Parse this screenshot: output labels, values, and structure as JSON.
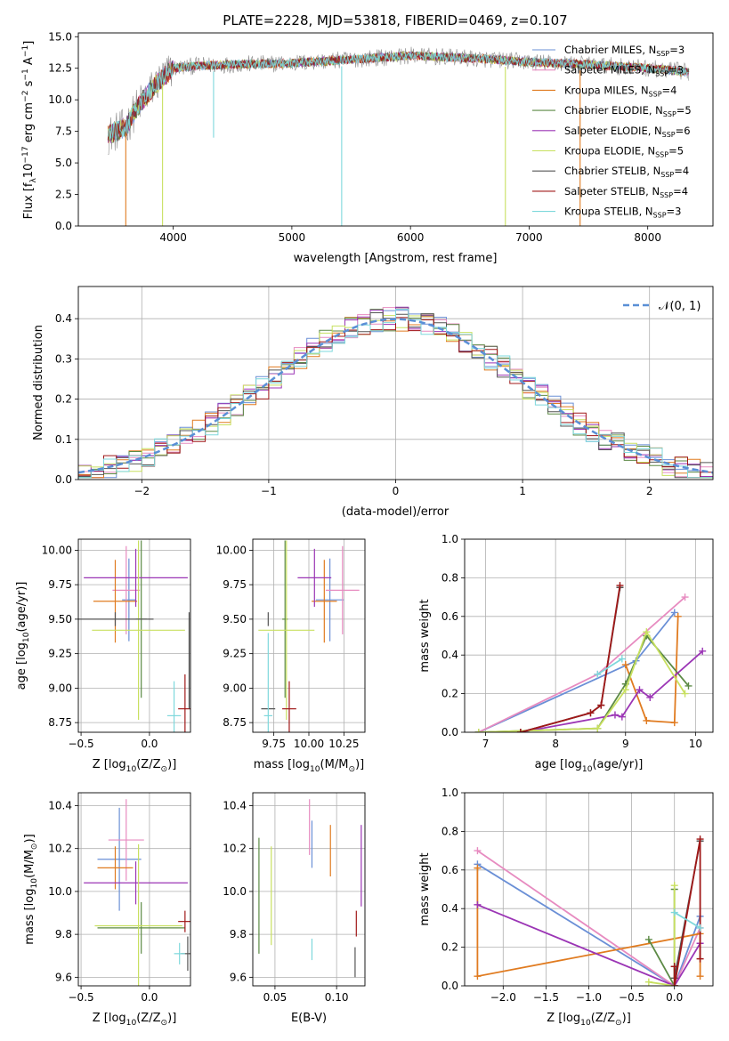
{
  "figure": {
    "title": "PLATE=2228, MJD=53818, FIBERID=0469, z=0.107"
  },
  "colors": {
    "chabrier_miles": "#6a8fd6",
    "salpeter_miles": "#e78bc0",
    "kroupa_miles": "#e07b20",
    "chabrier_elodie": "#5c8a45",
    "salpeter_elodie": "#9b35b5",
    "kroupa_elodie": "#c8e060",
    "chabrier_stelib": "#555555",
    "salpeter_stelib": "#a01818",
    "kroupa_stelib": "#7ed8dc",
    "data_gray": "#8c8c8c",
    "normal_curve": "#5a8fd6"
  },
  "chart_data": [
    {
      "id": "spectrum",
      "type": "line",
      "xlabel": "wavelength [Angstrom, rest frame]",
      "ylabel": "Flux [f",
      "ylabel_parts": [
        "Flux [f",
        "λ",
        "10",
        "−17",
        " erg cm",
        "−2",
        " s",
        "−1",
        " A",
        "−1",
        "]"
      ],
      "xlim": [
        3200,
        8550
      ],
      "ylim": [
        0,
        15.3
      ],
      "xticks": [
        4000,
        5000,
        6000,
        7000,
        8000
      ],
      "xtick_labels": [
        "4000",
        "5000",
        "6000",
        "7000",
        "8000"
      ],
      "yticks": [
        0,
        2.5,
        5,
        7.5,
        10,
        12.5,
        15
      ],
      "ytick_labels": [
        "0.0",
        "2.5",
        "5.0",
        "7.5",
        "10.0",
        "12.5",
        "15.0"
      ],
      "grid": false,
      "legend_position": "right",
      "legend": [
        {
          "label": "Chabrier MILES, N",
          "sub": "SSP",
          "n": "=3",
          "color_key": "chabrier_miles"
        },
        {
          "label": "Salpeter MILES, N",
          "sub": "SSP",
          "n": "=3",
          "color_key": "salpeter_miles"
        },
        {
          "label": "Kroupa MILES, N",
          "sub": "SSP",
          "n": "=4",
          "color_key": "kroupa_miles"
        },
        {
          "label": "Chabrier ELODIE, N",
          "sub": "SSP",
          "n": "=5",
          "color_key": "chabrier_elodie"
        },
        {
          "label": "Salpeter ELODIE, N",
          "sub": "SSP",
          "n": "=6",
          "color_key": "salpeter_elodie"
        },
        {
          "label": "Kroupa ELODIE, N",
          "sub": "SSP",
          "n": "=5",
          "color_key": "kroupa_elodie"
        },
        {
          "label": "Chabrier STELIB, N",
          "sub": "SSP",
          "n": "=4",
          "color_key": "chabrier_stelib"
        },
        {
          "label": "Salpeter STELIB, N",
          "sub": "SSP",
          "n": "=4",
          "color_key": "salpeter_stelib"
        },
        {
          "label": "Kroupa STELIB, N",
          "sub": "SSP",
          "n": "=3",
          "color_key": "kroupa_stelib"
        }
      ],
      "continuum": {
        "x": [
          3450,
          3600,
          3700,
          3850,
          4000,
          4200,
          4500,
          5000,
          5500,
          6000,
          6500,
          7000,
          7500,
          8000,
          8350
        ],
        "y": [
          7.2,
          7.8,
          9.5,
          11.2,
          12.5,
          12.7,
          12.8,
          12.9,
          13.2,
          13.5,
          13.3,
          13.0,
          12.8,
          12.5,
          12.2
        ]
      },
      "dips": [
        {
          "x": 3600,
          "y": 0.0,
          "series": "kroupa_miles"
        },
        {
          "x": 3910,
          "y": 0.0,
          "series": "kroupa_elodie"
        },
        {
          "x": 4340,
          "y": 7.0,
          "series": "kroupa_stelib"
        },
        {
          "x": 5420,
          "y": 0.0,
          "series": "kroupa_stelib"
        },
        {
          "x": 6800,
          "y": 0.0,
          "series": "kroupa_elodie"
        },
        {
          "x": 7430,
          "y": 0.0,
          "series": "kroupa_miles"
        }
      ]
    },
    {
      "id": "residuals",
      "type": "histogram",
      "xlabel": "(data-model)/error",
      "ylabel": "Normed distribution",
      "xlim": [
        -2.5,
        2.5
      ],
      "ylim": [
        0,
        0.48
      ],
      "xticks": [
        -2,
        -1,
        0,
        1,
        2
      ],
      "xtick_labels": [
        "−2",
        "−1",
        "0",
        "1",
        "2"
      ],
      "yticks": [
        0,
        0.1,
        0.2,
        0.3,
        0.4
      ],
      "ytick_labels": [
        "0.0",
        "0.1",
        "0.2",
        "0.3",
        "0.4"
      ],
      "grid": true,
      "legend_position": "top-right",
      "normal_label": "𝒩(0, 1)",
      "bin_width": 0.1
    },
    {
      "id": "age_vs_Z",
      "type": "scatter",
      "xlabel": "Z [log",
      "xlabel_parts": [
        "Z [log",
        "10",
        "(Z/Z",
        "⊙",
        ")]"
      ],
      "ylabel_parts": [
        "age  [log",
        "10",
        "(age/yr)]"
      ],
      "xlim": [
        -0.52,
        0.3
      ],
      "ylim": [
        8.68,
        10.08
      ],
      "xticks": [
        -0.5,
        0.0
      ],
      "xtick_labels": [
        "−0.5",
        "0.0"
      ],
      "yticks": [
        8.75,
        9.0,
        9.25,
        9.5,
        9.75,
        10.0
      ],
      "ytick_labels": [
        "8.75",
        "9.00",
        "9.25",
        "9.50",
        "9.75",
        "10.00"
      ],
      "grid": true,
      "points": [
        {
          "series": "chabrier_miles",
          "x": -0.15,
          "y": 9.64,
          "xerr": 0.05,
          "yerr": 0.3
        },
        {
          "series": "salpeter_miles",
          "x": -0.17,
          "y": 9.71,
          "xerr": 0.1,
          "yerr": 0.32
        },
        {
          "series": "kroupa_miles",
          "x": -0.25,
          "y": 9.63,
          "xerr": 0.16,
          "yerr": 0.3
        },
        {
          "series": "chabrier_elodie",
          "x": -0.06,
          "y": 9.5,
          "xerr": 0.04,
          "yerr": 0.57
        },
        {
          "series": "salpeter_elodie",
          "x": -0.1,
          "y": 9.8,
          "xerr": 0.38,
          "yerr": 0.21
        },
        {
          "series": "kroupa_elodie",
          "x": -0.08,
          "y": 9.42,
          "xerr": 0.34,
          "yerr": 0.65
        },
        {
          "series": "chabrier_stelib",
          "x": -0.25,
          "y": 9.5,
          "xerr": 0.28,
          "yerr": 0.05
        },
        {
          "series": "salpeter_stelib",
          "x": 0.26,
          "y": 8.85,
          "xerr": 0.05,
          "yerr": 0.25
        },
        {
          "series": "kroupa_stelib",
          "x": 0.18,
          "y": 8.8,
          "xerr": 0.05,
          "yerr": 0.25
        },
        {
          "series": "chabrier_stelib",
          "x": 0.29,
          "y": 9.2,
          "xerr": 0.0,
          "yerr": 0.35
        }
      ]
    },
    {
      "id": "age_vs_mass",
      "type": "scatter",
      "xlabel_parts": [
        "mass [log",
        "10",
        "(M/M",
        "⊙",
        ")]"
      ],
      "xlim": [
        9.6,
        10.4
      ],
      "ylim": [
        8.68,
        10.08
      ],
      "xticks": [
        9.75,
        10.0,
        10.25
      ],
      "xtick_labels": [
        "9.75",
        "10.00",
        "10.25"
      ],
      "yticks": [
        8.75,
        9.0,
        9.25,
        9.5,
        9.75,
        10.0
      ],
      "ytick_labels": [
        "8.75",
        "9.00",
        "9.25",
        "9.50",
        "9.75",
        "10.00"
      ],
      "grid": true,
      "points": [
        {
          "series": "chabrier_miles",
          "x": 10.15,
          "y": 9.64,
          "xerr": 0.1,
          "yerr": 0.3
        },
        {
          "series": "salpeter_miles",
          "x": 10.24,
          "y": 9.71,
          "xerr": 0.12,
          "yerr": 0.32
        },
        {
          "series": "kroupa_miles",
          "x": 10.11,
          "y": 9.63,
          "xerr": 0.09,
          "yerr": 0.3
        },
        {
          "series": "chabrier_elodie",
          "x": 9.83,
          "y": 9.5,
          "xerr": 0.02,
          "yerr": 0.57
        },
        {
          "series": "salpeter_elodie",
          "x": 10.04,
          "y": 9.8,
          "xerr": 0.12,
          "yerr": 0.21
        },
        {
          "series": "kroupa_elodie",
          "x": 9.84,
          "y": 9.42,
          "xerr": 0.2,
          "yerr": 0.65
        },
        {
          "series": "chabrier_stelib",
          "x": 9.71,
          "y": 9.5,
          "xerr": 0.0,
          "yerr": 0.05
        },
        {
          "series": "chabrier_stelib",
          "x": 9.71,
          "y": 8.85,
          "xerr": 0.05,
          "yerr": 0.0
        },
        {
          "series": "salpeter_stelib",
          "x": 9.86,
          "y": 8.85,
          "xerr": 0.05,
          "yerr": 0.2
        },
        {
          "series": "kroupa_stelib",
          "x": 9.71,
          "y": 8.8,
          "xerr": 0.03,
          "yerr": 0.6
        }
      ]
    },
    {
      "id": "weights_vs_age",
      "type": "line",
      "xlabel_parts": [
        "age  [log",
        "10",
        "(age/yr)]"
      ],
      "ylabel": "mass weight",
      "xlim": [
        6.7,
        10.25
      ],
      "ylim": [
        0,
        1
      ],
      "xticks": [
        7,
        8,
        9,
        10
      ],
      "xtick_labels": [
        "7",
        "8",
        "9",
        "10"
      ],
      "yticks": [
        0,
        0.2,
        0.4,
        0.6,
        0.8,
        1.0
      ],
      "ytick_labels": [
        "0.0",
        "0.2",
        "0.4",
        "0.6",
        "0.8",
        "1.0"
      ],
      "grid": true,
      "series": [
        {
          "name": "Chabrier MILES",
          "color_key": "chabrier_miles",
          "x": [
            6.9,
            9.15,
            9.7
          ],
          "y": [
            0.0,
            0.37,
            0.62
          ]
        },
        {
          "name": "Salpeter MILES",
          "color_key": "salpeter_miles",
          "x": [
            6.9,
            8.6,
            9.85
          ],
          "y": [
            0.0,
            0.3,
            0.7
          ]
        },
        {
          "name": "Kroupa MILES",
          "color_key": "kroupa_miles",
          "x": [
            9.0,
            9.3,
            9.7,
            9.75
          ],
          "y": [
            0.35,
            0.06,
            0.05,
            0.6
          ]
        },
        {
          "name": "Chabrier ELODIE",
          "color_key": "chabrier_elodie",
          "x": [
            6.9,
            8.6,
            9.0,
            9.3,
            9.9
          ],
          "y": [
            0.0,
            0.02,
            0.25,
            0.5,
            0.24
          ]
        },
        {
          "name": "Salpeter ELODIE",
          "color_key": "salpeter_elodie",
          "x": [
            7.5,
            8.85,
            8.95,
            9.2,
            9.35,
            10.1
          ],
          "y": [
            0.0,
            0.09,
            0.08,
            0.22,
            0.18,
            0.42
          ]
        },
        {
          "name": "Kroupa ELODIE",
          "color_key": "kroupa_elodie",
          "x": [
            6.9,
            8.6,
            9.0,
            9.3,
            9.85
          ],
          "y": [
            0.0,
            0.02,
            0.22,
            0.52,
            0.2
          ]
        },
        {
          "name": "Chabrier STELIB",
          "color_key": "chabrier_stelib",
          "x": [
            7.5,
            8.5,
            8.65,
            8.92
          ],
          "y": [
            0.0,
            0.1,
            0.14,
            0.75
          ]
        },
        {
          "name": "Salpeter STELIB",
          "color_key": "salpeter_stelib",
          "x": [
            7.5,
            8.5,
            8.65,
            8.92
          ],
          "y": [
            0.0,
            0.1,
            0.14,
            0.76
          ]
        },
        {
          "name": "Kroupa STELIB",
          "color_key": "kroupa_stelib",
          "x": [
            8.6,
            8.95
          ],
          "y": [
            0.3,
            0.38
          ]
        }
      ]
    },
    {
      "id": "mass_vs_Z",
      "type": "scatter",
      "xlabel_parts": [
        "Z [log",
        "10",
        "(Z/Z",
        "⊙",
        ")]"
      ],
      "ylabel_parts": [
        "mass [log",
        "10",
        "(M/M",
        "⊙",
        ")]"
      ],
      "xlim": [
        -0.52,
        0.3
      ],
      "ylim": [
        9.56,
        10.46
      ],
      "xticks": [
        -0.5,
        0.0
      ],
      "xtick_labels": [
        "−0.5",
        "0.0"
      ],
      "yticks": [
        9.6,
        9.8,
        10.0,
        10.2,
        10.4
      ],
      "ytick_labels": [
        "9.6",
        "9.8",
        "10.0",
        "10.2",
        "10.4"
      ],
      "grid": true,
      "points": [
        {
          "series": "chabrier_miles",
          "x": -0.22,
          "y": 10.15,
          "xerr": 0.16,
          "yerr": 0.24
        },
        {
          "series": "salpeter_miles",
          "x": -0.17,
          "y": 10.24,
          "xerr": 0.13,
          "yerr": 0.19
        },
        {
          "series": "kroupa_miles",
          "x": -0.25,
          "y": 10.11,
          "xerr": 0.13,
          "yerr": 0.1
        },
        {
          "series": "chabrier_elodie",
          "x": -0.06,
          "y": 9.83,
          "xerr": 0.32,
          "yerr": 0.12
        },
        {
          "series": "salpeter_elodie",
          "x": -0.1,
          "y": 10.04,
          "xerr": 0.38,
          "yerr": 0.1
        },
        {
          "series": "kroupa_elodie",
          "x": -0.08,
          "y": 9.84,
          "xerr": 0.32,
          "yerr": 0.38
        },
        {
          "series": "chabrier_stelib",
          "x": 0.28,
          "y": 9.71,
          "xerr": 0.05,
          "yerr": 0.08
        },
        {
          "series": "salpeter_stelib",
          "x": 0.26,
          "y": 9.86,
          "xerr": 0.05,
          "yerr": 0.05
        },
        {
          "series": "kroupa_stelib",
          "x": 0.22,
          "y": 9.71,
          "xerr": 0.04,
          "yerr": 0.05
        }
      ]
    },
    {
      "id": "mass_vs_ebv",
      "type": "scatter",
      "xlabel": "E(B-V)",
      "xlim": [
        0.032,
        0.123
      ],
      "ylim": [
        9.56,
        10.46
      ],
      "xticks": [
        0.05,
        0.1
      ],
      "xtick_labels": [
        "0.05",
        "0.10"
      ],
      "yticks": [
        9.6,
        9.8,
        10.0,
        10.2,
        10.4
      ],
      "ytick_labels": [
        "9.6",
        "9.8",
        "10.0",
        "10.2",
        "10.4"
      ],
      "grid": true,
      "points": [
        {
          "series": "chabrier_elodie",
          "x": 0.037,
          "y": 9.98,
          "xerr": 0.0,
          "yerr": 0.27
        },
        {
          "series": "kroupa_elodie",
          "x": 0.047,
          "y": 9.98,
          "xerr": 0.0,
          "yerr": 0.23
        },
        {
          "series": "salpeter_miles",
          "x": 0.078,
          "y": 10.3,
          "xerr": 0.0,
          "yerr": 0.13
        },
        {
          "series": "chabrier_miles",
          "x": 0.08,
          "y": 10.22,
          "xerr": 0.0,
          "yerr": 0.11
        },
        {
          "series": "kroupa_stelib",
          "x": 0.08,
          "y": 9.73,
          "xerr": 0.0,
          "yerr": 0.05
        },
        {
          "series": "kroupa_miles",
          "x": 0.095,
          "y": 10.19,
          "xerr": 0.0,
          "yerr": 0.12
        },
        {
          "series": "salpeter_stelib",
          "x": 0.116,
          "y": 9.85,
          "xerr": 0.0,
          "yerr": 0.06
        },
        {
          "series": "chabrier_stelib",
          "x": 0.115,
          "y": 9.67,
          "xerr": 0.0,
          "yerr": 0.07
        },
        {
          "series": "salpeter_elodie",
          "x": 0.12,
          "y": 10.12,
          "xerr": 0.0,
          "yerr": 0.19
        }
      ]
    },
    {
      "id": "weights_vs_Z",
      "type": "line",
      "xlabel_parts": [
        "Z [log",
        "10",
        "(Z/Z",
        "⊙",
        ")]"
      ],
      "ylabel": "mass weight",
      "xlim": [
        -2.45,
        0.45
      ],
      "ylim": [
        0,
        1
      ],
      "xticks": [
        -2.0,
        -1.5,
        -1.0,
        -0.5,
        0.0
      ],
      "xtick_labels": [
        "−2.0",
        "−1.5",
        "−1.0",
        "−0.5",
        "0.0"
      ],
      "yticks": [
        0,
        0.2,
        0.4,
        0.6,
        0.8,
        1.0
      ],
      "ytick_labels": [
        "0.0",
        "0.2",
        "0.4",
        "0.6",
        "0.8",
        "1.0"
      ],
      "grid": true,
      "series": [
        {
          "name": "Chabrier MILES",
          "color_key": "chabrier_miles",
          "x": [
            -2.3,
            0.0,
            0.3
          ],
          "y": [
            0.63,
            0.0,
            0.36
          ]
        },
        {
          "name": "Salpeter MILES",
          "color_key": "salpeter_miles",
          "x": [
            -2.3,
            0.0,
            0.3
          ],
          "y": [
            0.7,
            0.0,
            0.3
          ]
        },
        {
          "name": "Kroupa MILES",
          "color_key": "kroupa_miles",
          "x": [
            -2.3,
            -2.3,
            0.3,
            0.3
          ],
          "y": [
            0.61,
            0.05,
            0.27,
            0.05
          ]
        },
        {
          "name": "Chabrier ELODIE",
          "color_key": "chabrier_elodie",
          "x": [
            -0.3,
            0.0,
            0.0
          ],
          "y": [
            0.24,
            0.0,
            0.5
          ]
        },
        {
          "name": "Salpeter ELODIE",
          "color_key": "salpeter_elodie",
          "x": [
            -2.3,
            0.0,
            0.3
          ],
          "y": [
            0.42,
            0.0,
            0.22
          ]
        },
        {
          "name": "Kroupa ELODIE",
          "color_key": "kroupa_elodie",
          "x": [
            -0.3,
            0.0,
            0.0
          ],
          "y": [
            0.02,
            0.0,
            0.52
          ]
        },
        {
          "name": "Chabrier STELIB",
          "color_key": "chabrier_stelib",
          "x": [
            0.0,
            0.0,
            0.3
          ],
          "y": [
            0.1,
            0.04,
            0.75
          ]
        },
        {
          "name": "Salpeter STELIB",
          "color_key": "salpeter_stelib",
          "x": [
            0.0,
            0.0,
            0.3,
            0.3
          ],
          "y": [
            0.1,
            0.0,
            0.76,
            0.14
          ]
        },
        {
          "name": "Kroupa STELIB",
          "color_key": "kroupa_stelib",
          "x": [
            0.0,
            0.3
          ],
          "y": [
            0.38,
            0.3
          ]
        }
      ]
    }
  ]
}
